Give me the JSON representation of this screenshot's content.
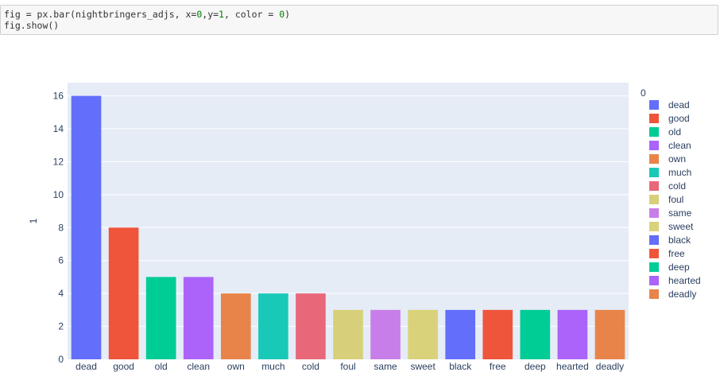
{
  "code": {
    "line1_prefix": "fig = px.bar(nightbringers_adjs, x=",
    "line1_n1": "0",
    "line1_mid1": ",y=",
    "line1_n2": "1",
    "line1_mid2": ", color = ",
    "line1_n3": "0",
    "line1_suffix": ")",
    "line2": "fig.show()"
  },
  "chart_data": {
    "type": "bar",
    "title": "",
    "xlabel": "",
    "ylabel": "1",
    "ylim": [
      0,
      16.8
    ],
    "yticks": [
      0,
      2,
      4,
      6,
      8,
      10,
      12,
      14,
      16
    ],
    "grid": true,
    "legend_title": "0",
    "legend_position": "right",
    "categories": [
      "dead",
      "good",
      "old",
      "clean",
      "own",
      "much",
      "cold",
      "foul",
      "same",
      "sweet",
      "black",
      "free",
      "deep",
      "hearted",
      "deadly"
    ],
    "values": [
      16,
      8,
      5,
      5,
      4,
      4,
      4,
      3,
      3,
      3,
      3,
      3,
      3,
      3,
      3
    ],
    "colors": [
      "#636efa",
      "#ef553b",
      "#00cc96",
      "#ab63fa",
      "#ffa15a",
      "#19d3f3",
      "#ff6692",
      "#b6e880",
      "#ff97ff",
      "#fecb52",
      "#636efa",
      "#ef553b",
      "#00cc96",
      "#ab63fa",
      "#ffa15a"
    ],
    "legend_colors": [
      "#636efa",
      "#ef553b",
      "#00cc96",
      "#ab63fa",
      "#e8844a",
      "#19c9b8",
      "#e8687a",
      "#d8cf7a",
      "#c77ee8",
      "#d9d27a",
      "#636efa",
      "#ef553b",
      "#00cc96",
      "#ab63fa",
      "#e8844a"
    ]
  }
}
